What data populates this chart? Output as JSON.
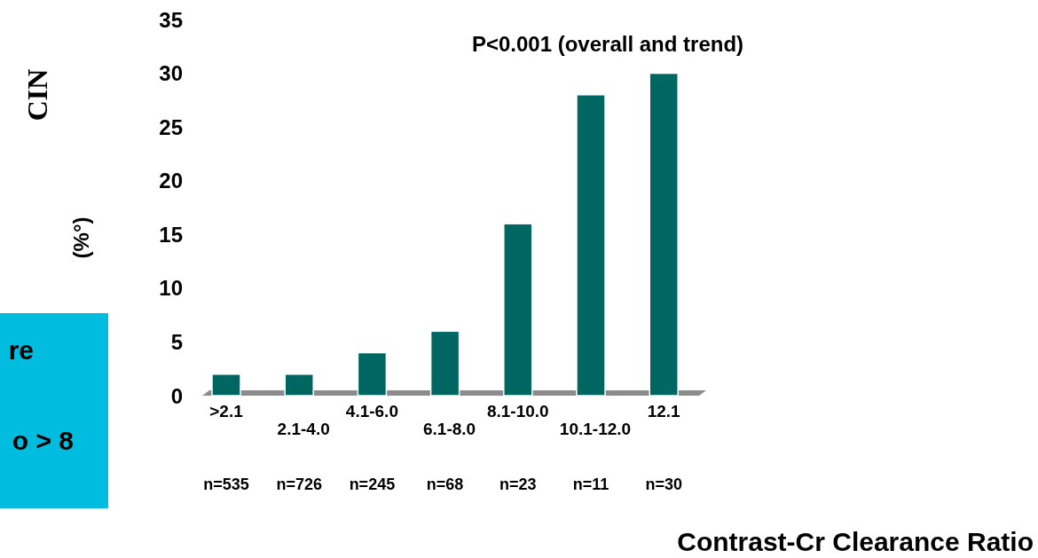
{
  "chart_data": {
    "type": "bar",
    "categories": [
      ">2.1",
      "2.1-4.0",
      "4.1-6.0",
      "6.1-8.0",
      "8.1-10.0",
      "10.1-12.0",
      "12.1"
    ],
    "values": [
      2,
      2,
      4,
      6,
      16,
      28,
      30
    ],
    "color": "#006661",
    "ylim": [
      0,
      35
    ],
    "yticks": [
      0,
      5,
      10,
      15,
      20,
      25,
      30,
      35
    ],
    "grid": false,
    "ylabel": "CIN",
    "xlabel": "Contrast-Cr Clearance Ratio",
    "annotations": [
      "P<0.001 (overall and trend)",
      "(%°)",
      "n=535",
      "n=726",
      "n=245",
      "n=68",
      "n=23",
      "n=11",
      "n=30",
      "re",
      "o > 8"
    ]
  }
}
